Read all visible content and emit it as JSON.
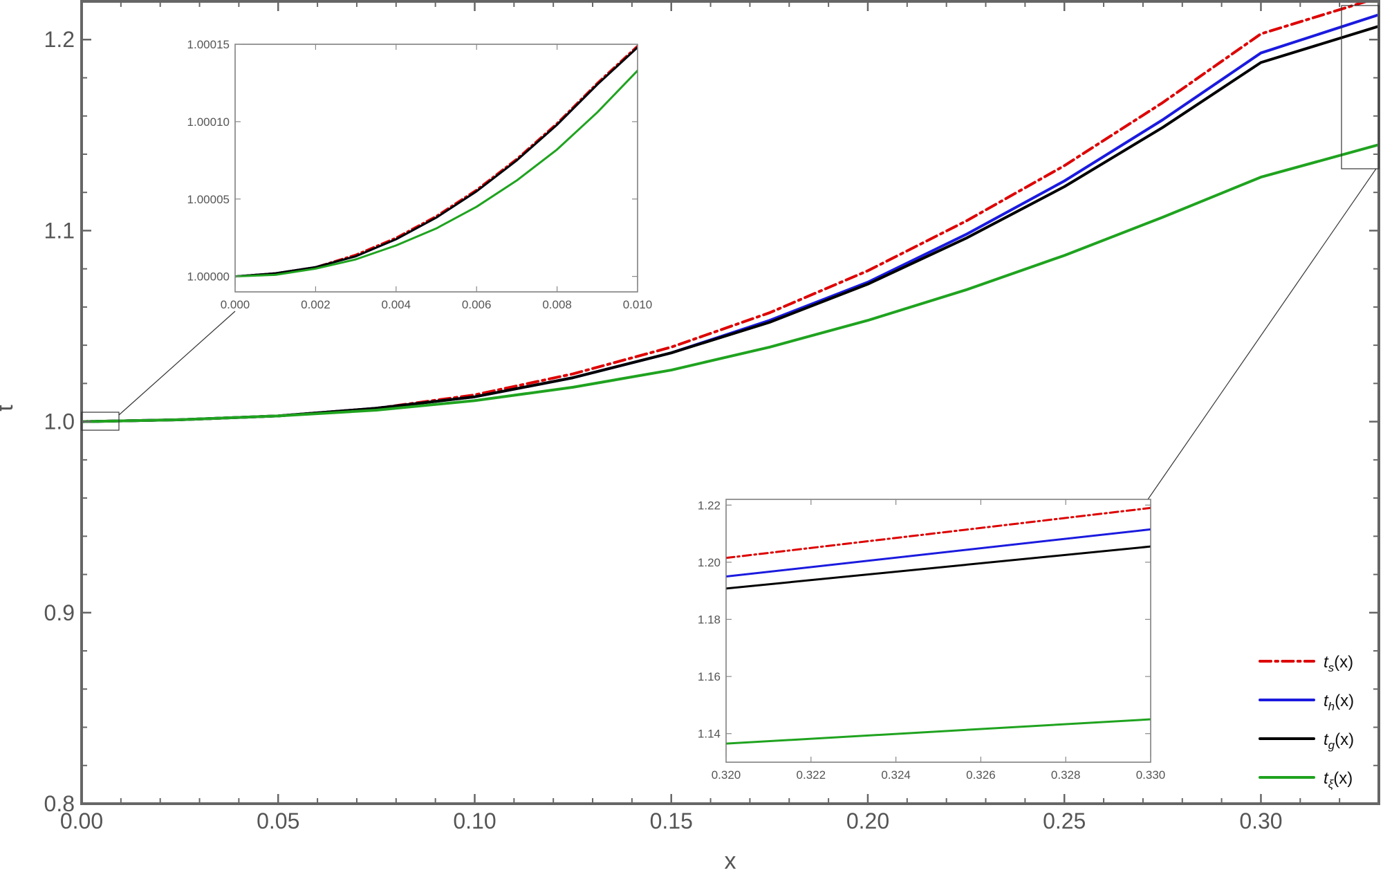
{
  "chart_data": {
    "main": {
      "type": "line",
      "xlabel": "x",
      "ylabel": "t",
      "xlim": [
        0.0,
        0.33
      ],
      "ylim": [
        0.8,
        1.22
      ],
      "x_ticks": [
        "0.00",
        "0.05",
        "0.10",
        "0.15",
        "0.20",
        "0.25",
        "0.30"
      ],
      "y_ticks": [
        "0.8",
        "0.9",
        "1.0",
        "1.1",
        "1.2"
      ],
      "grid": false,
      "legend_position": "bottom-right",
      "series": [
        {
          "name": "t_s(x)",
          "style": "dash-dot",
          "color": "#dd0000",
          "x": [
            0.0,
            0.025,
            0.05,
            0.075,
            0.1,
            0.125,
            0.15,
            0.175,
            0.2,
            0.225,
            0.25,
            0.275,
            0.3,
            0.33
          ],
          "y": [
            1.0,
            1.001,
            1.003,
            1.007,
            1.014,
            1.025,
            1.039,
            1.057,
            1.079,
            1.105,
            1.134,
            1.167,
            1.203,
            1.222
          ]
        },
        {
          "name": "t_h(x)",
          "style": "solid",
          "color": "#1a1adf",
          "x": [
            0.0,
            0.025,
            0.05,
            0.075,
            0.1,
            0.125,
            0.15,
            0.175,
            0.2,
            0.225,
            0.25,
            0.275,
            0.3,
            0.33
          ],
          "y": [
            1.0,
            1.001,
            1.003,
            1.007,
            1.013,
            1.023,
            1.036,
            1.053,
            1.073,
            1.098,
            1.126,
            1.158,
            1.193,
            1.213
          ]
        },
        {
          "name": "t_g(x)",
          "style": "solid",
          "color": "#000000",
          "x": [
            0.0,
            0.025,
            0.05,
            0.075,
            0.1,
            0.125,
            0.15,
            0.175,
            0.2,
            0.225,
            0.25,
            0.275,
            0.3,
            0.33
          ],
          "y": [
            1.0,
            1.001,
            1.003,
            1.007,
            1.013,
            1.023,
            1.036,
            1.052,
            1.072,
            1.096,
            1.123,
            1.154,
            1.188,
            1.207
          ]
        },
        {
          "name": "t_ξ(x)",
          "style": "solid",
          "color": "#1fa31f",
          "x": [
            0.0,
            0.025,
            0.05,
            0.075,
            0.1,
            0.125,
            0.15,
            0.175,
            0.2,
            0.225,
            0.25,
            0.275,
            0.3,
            0.33
          ],
          "y": [
            1.0,
            1.001,
            1.003,
            1.006,
            1.011,
            1.018,
            1.027,
            1.039,
            1.053,
            1.069,
            1.087,
            1.107,
            1.128,
            1.145
          ]
        }
      ]
    },
    "inset_low": {
      "type": "line",
      "xlim": [
        0.0,
        0.01
      ],
      "ylim": [
        0.99999,
        1.00015
      ],
      "x_ticks": [
        "0.000",
        "0.002",
        "0.004",
        "0.006",
        "0.008",
        "0.010"
      ],
      "y_ticks": [
        "1.00000",
        "1.00005",
        "1.00010",
        "1.00015"
      ],
      "series": [
        {
          "name": "t_s(x)",
          "color": "#dd0000",
          "style": "dash-dot",
          "x": [
            0.0,
            0.001,
            0.002,
            0.003,
            0.004,
            0.005,
            0.006,
            0.007,
            0.008,
            0.009,
            0.01
          ],
          "y": [
            1.0,
            1.000002,
            1.000006,
            1.000014,
            1.000025,
            1.000039,
            1.000056,
            1.000076,
            1.000099,
            1.000125,
            1.000149
          ]
        },
        {
          "name": "t_h(x)",
          "color": "#1a1adf",
          "style": "solid",
          "x": [
            0.0,
            0.001,
            0.002,
            0.003,
            0.004,
            0.005,
            0.006,
            0.007,
            0.008,
            0.009,
            0.01
          ],
          "y": [
            1.0,
            1.000002,
            1.000006,
            1.000013,
            1.000024,
            1.000038,
            1.000055,
            1.000075,
            1.000098,
            1.000124,
            1.000148
          ]
        },
        {
          "name": "t_g(x)",
          "color": "#000000",
          "style": "solid",
          "x": [
            0.0,
            0.001,
            0.002,
            0.003,
            0.004,
            0.005,
            0.006,
            0.007,
            0.008,
            0.009,
            0.01
          ],
          "y": [
            1.0,
            1.000002,
            1.000006,
            1.000013,
            1.000024,
            1.000038,
            1.000055,
            1.000075,
            1.000098,
            1.000124,
            1.000148
          ]
        },
        {
          "name": "t_ξ(x)",
          "color": "#1fa31f",
          "style": "solid",
          "x": [
            0.0,
            0.001,
            0.002,
            0.003,
            0.004,
            0.005,
            0.006,
            0.007,
            0.008,
            0.009,
            0.01
          ],
          "y": [
            1.0,
            1.000001,
            1.000005,
            1.000011,
            1.00002,
            1.000031,
            1.000045,
            1.000062,
            1.000082,
            1.000106,
            1.000133
          ]
        }
      ]
    },
    "inset_high": {
      "type": "line",
      "xlim": [
        0.32,
        0.33
      ],
      "ylim": [
        1.13,
        1.222
      ],
      "x_ticks": [
        "0.320",
        "0.322",
        "0.324",
        "0.326",
        "0.328",
        "0.330"
      ],
      "y_ticks": [
        "1.14",
        "1.16",
        "1.18",
        "1.20",
        "1.22"
      ],
      "series": [
        {
          "name": "t_s(x)",
          "color": "#dd0000",
          "style": "dash-dot",
          "x": [
            0.32,
            0.33
          ],
          "y": [
            1.2015,
            1.219
          ]
        },
        {
          "name": "t_h(x)",
          "color": "#1a1adf",
          "style": "solid",
          "x": [
            0.32,
            0.33
          ],
          "y": [
            1.195,
            1.2115
          ]
        },
        {
          "name": "t_g(x)",
          "color": "#000000",
          "style": "solid",
          "x": [
            0.32,
            0.33
          ],
          "y": [
            1.1908,
            1.2055
          ]
        },
        {
          "name": "t_ξ(x)",
          "color": "#1fa31f",
          "style": "solid",
          "x": [
            0.32,
            0.33
          ],
          "y": [
            1.1365,
            1.145
          ]
        }
      ]
    },
    "legend": [
      {
        "base": "t",
        "sub": "s",
        "suffix": "(x)",
        "color": "#dd0000",
        "style": "dash-dot"
      },
      {
        "base": "t",
        "sub": "h",
        "suffix": "(x)",
        "color": "#1a1adf",
        "style": "solid"
      },
      {
        "base": "t",
        "sub": "g",
        "suffix": "(x)",
        "color": "#000000",
        "style": "solid"
      },
      {
        "base": "t",
        "sub": "ξ",
        "suffix": "(x)",
        "color": "#1fa31f",
        "style": "solid"
      }
    ]
  }
}
